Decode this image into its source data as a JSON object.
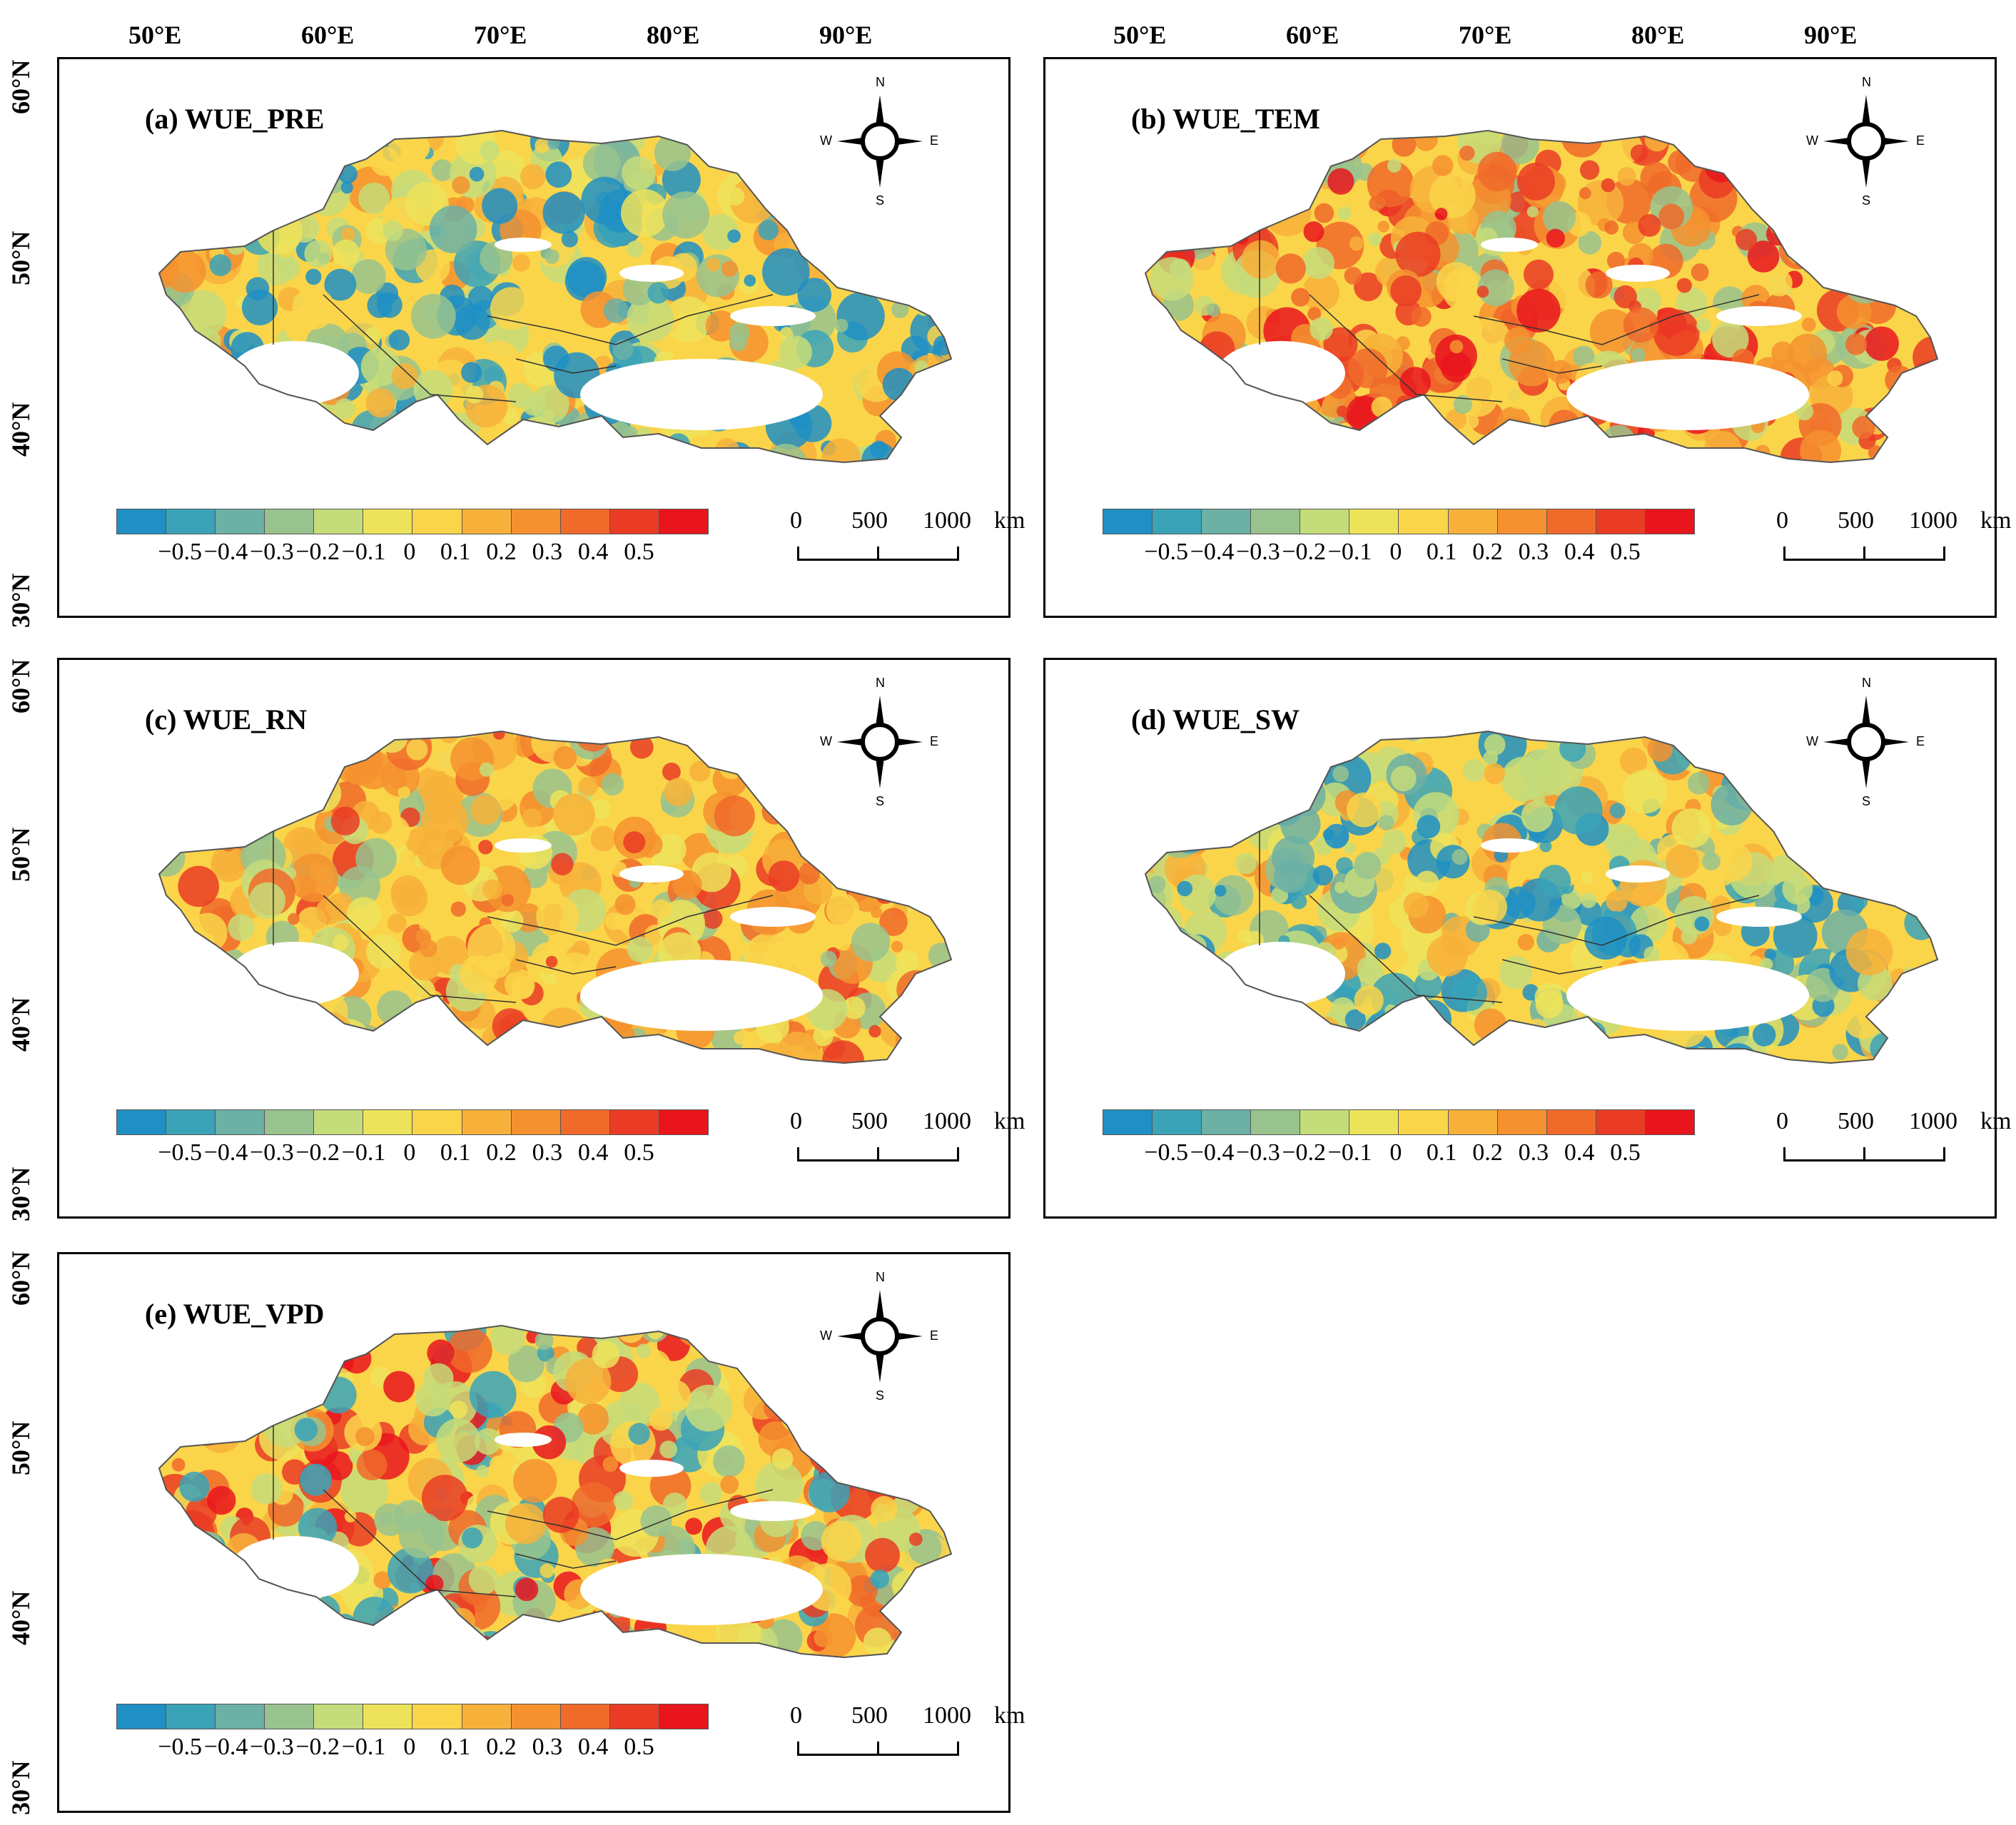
{
  "longitude_labels": [
    "50°E",
    "60°E",
    "70°E",
    "80°E",
    "90°E"
  ],
  "latitude_labels": [
    "60°N",
    "50°N",
    "40°N",
    "30°N"
  ],
  "panels": [
    {
      "id": "a",
      "title": "(a) WUE_PRE",
      "dominant": "mixed-blue"
    },
    {
      "id": "b",
      "title": "(b) WUE_TEM",
      "dominant": "red"
    },
    {
      "id": "c",
      "title": "(c) WUE_RN",
      "dominant": "orange"
    },
    {
      "id": "d",
      "title": "(d) WUE_SW",
      "dominant": "mixed-blue"
    },
    {
      "id": "e",
      "title": "(e) WUE_VPD",
      "dominant": "mixed-red"
    }
  ],
  "compass": {
    "n": "N",
    "s": "S",
    "e": "E",
    "w": "W"
  },
  "legend": {
    "colors": [
      "#1f8fc4",
      "#3aa3b8",
      "#6cb0a6",
      "#98c38e",
      "#c5dc7a",
      "#ede35b",
      "#fad54a",
      "#f7b13a",
      "#f5922f",
      "#f06a2a",
      "#ea3c24",
      "#e9151d"
    ],
    "ticks": [
      "−0.5",
      "−0.4",
      "−0.3",
      "−0.2",
      "−0.1",
      "0",
      "0.1",
      "0.2",
      "0.3",
      "0.4",
      "0.5"
    ]
  },
  "scale_bar": {
    "labels": [
      "0",
      "500",
      "1000"
    ],
    "unit": "km"
  }
}
